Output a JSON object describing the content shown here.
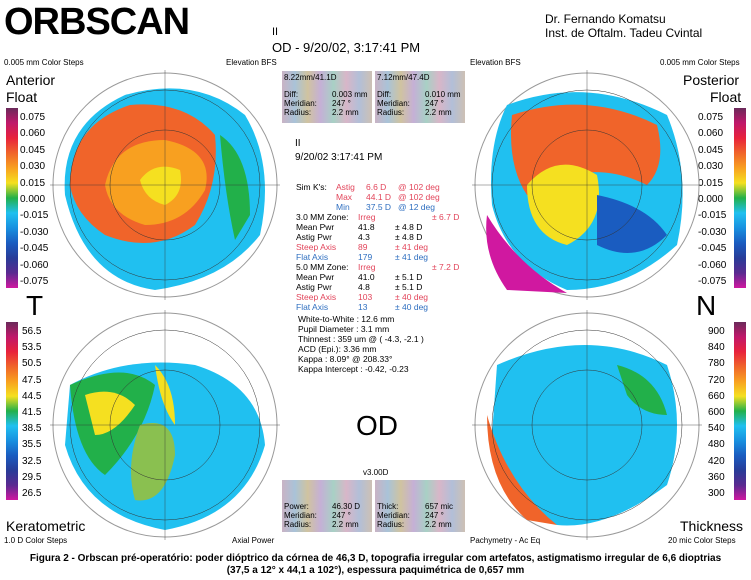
{
  "header": {
    "logo": "ORBSCAN",
    "eye_id": "II",
    "title": "OD - 9/20/02, 3:17:41 PM",
    "doctor": "Dr. Fernando Komatsu",
    "institute": "Inst. de Oftalm. Tadeu Cvintal"
  },
  "top_left": {
    "steps": "0.005 mm Color Steps",
    "mode": "Elevation BFS",
    "title1": "Anterior",
    "title2": "Float",
    "scale": [
      "0.075",
      "0.060",
      "0.045",
      "0.030",
      "0.015",
      "0.000",
      "-0.015",
      "-0.030",
      "-0.045",
      "-0.060",
      "-0.075"
    ]
  },
  "top_right": {
    "steps": "0.005 mm Color Steps",
    "mode": "Elevation BFS",
    "title1": "Posterior",
    "title2": "Float",
    "scale": [
      "0.075",
      "0.060",
      "0.045",
      "0.030",
      "0.015",
      "0.000",
      "-0.015",
      "-0.030",
      "-0.045",
      "-0.060",
      "-0.075"
    ]
  },
  "bottom_left": {
    "title": "Keratometric",
    "steps": "1.0 D Color Steps",
    "mode": "Axial Power",
    "scale": [
      "56.5",
      "53.5",
      "50.5",
      "47.5",
      "44.5",
      "41.5",
      "38.5",
      "35.5",
      "32.5",
      "29.5",
      "26.5"
    ]
  },
  "bottom_right": {
    "title": "Thickness",
    "steps": "20 mic Color Steps",
    "mode": "Pachymetry - Ac Eq",
    "scale": [
      "900",
      "840",
      "780",
      "720",
      "660",
      "600",
      "540",
      "480",
      "420",
      "360",
      "300"
    ]
  },
  "side_labels": {
    "temporal": "T",
    "nasal": "N",
    "eye": "OD"
  },
  "info_boxes": {
    "top_left": {
      "head": "8.22mm/41.1D",
      "rows": [
        [
          "Diff:",
          "0.003 mm"
        ],
        [
          "Meridian:",
          "247 °"
        ],
        [
          "Radius:",
          "2.2 mm"
        ]
      ]
    },
    "top_right": {
      "head": "7.12mm/47.4D",
      "rows": [
        [
          "Diff:",
          "0.010 mm"
        ],
        [
          "Meridian:",
          "247 °"
        ],
        [
          "Radius:",
          "2.2 mm"
        ]
      ]
    },
    "bottom_version": "v3.00D",
    "bottom_left": {
      "rows": [
        [
          "Power:",
          "46.30 D"
        ],
        [
          "Meridian:",
          "247 °"
        ],
        [
          "Radius:",
          "2.2 mm"
        ]
      ]
    },
    "bottom_right": {
      "rows": [
        [
          "Thick:",
          "657 mic"
        ],
        [
          "Meridian:",
          "247 °"
        ],
        [
          "Radius:",
          "2.2 mm"
        ]
      ]
    }
  },
  "center": {
    "eye_id": "II",
    "date": "9/20/02 3:17:41 PM",
    "stats": [
      [
        [
          "Sim K's:",
          ""
        ],
        [
          "Astig",
          "red"
        ],
        [
          "6.6 D",
          "red"
        ],
        [
          "@ 102 deg",
          "red"
        ]
      ],
      [
        [
          "",
          ""
        ],
        [
          "Max",
          "red"
        ],
        [
          "44.1 D",
          "red"
        ],
        [
          "@ 102 deg",
          "red"
        ]
      ],
      [
        [
          "",
          ""
        ],
        [
          "Min",
          "blu"
        ],
        [
          "37.5 D",
          "blu"
        ],
        [
          "@ 12 deg",
          "blu"
        ]
      ],
      [
        [
          "3.0 MM Zone:",
          ""
        ],
        [
          "Irreg",
          "red"
        ],
        [
          "",
          ""
        ],
        [
          "± 6.7 D",
          "red"
        ]
      ],
      [
        [
          " Mean Pwr",
          ""
        ],
        [
          "41.8",
          ""
        ],
        [
          "± 4.8 D",
          ""
        ],
        [
          "",
          ""
        ]
      ],
      [
        [
          " Astig Pwr",
          ""
        ],
        [
          "4.3",
          ""
        ],
        [
          "± 4.8 D",
          ""
        ],
        [
          "",
          ""
        ]
      ],
      [
        [
          " Steep Axis",
          "red"
        ],
        [
          "89",
          "red"
        ],
        [
          "± 41 deg",
          "red"
        ],
        [
          "",
          ""
        ]
      ],
      [
        [
          " Flat Axis",
          "blu"
        ],
        [
          "179",
          "blu"
        ],
        [
          "± 41 deg",
          "blu"
        ],
        [
          "",
          ""
        ]
      ],
      [
        [
          "5.0 MM Zone:",
          ""
        ],
        [
          "Irreg",
          "red"
        ],
        [
          "",
          ""
        ],
        [
          "± 7.2 D",
          "red"
        ]
      ],
      [
        [
          " Mean Pwr",
          ""
        ],
        [
          "41.0",
          ""
        ],
        [
          "± 5.1 D",
          ""
        ],
        [
          "",
          ""
        ]
      ],
      [
        [
          " Astig Pwr",
          ""
        ],
        [
          "4.8",
          ""
        ],
        [
          "± 5.1 D",
          ""
        ],
        [
          "",
          ""
        ]
      ],
      [
        [
          " Steep Axis",
          "red"
        ],
        [
          "103",
          "red"
        ],
        [
          "± 40 deg",
          "red"
        ],
        [
          "",
          ""
        ]
      ],
      [
        [
          " Flat Axis",
          "blu"
        ],
        [
          "13",
          "blu"
        ],
        [
          "± 40 deg",
          "blu"
        ],
        [
          "",
          ""
        ]
      ]
    ],
    "extra": [
      "White-to-White : 12.6 mm",
      "Pupil Diameter : 3.1 mm",
      "Thinnest : 359 um @ ( -4.3, -2.1 )",
      "ACD (Epi.): 3.36 mm",
      "Kappa : 8.09° @ 208.33°",
      "Kappa Intercept : -0.42, -0.23"
    ]
  },
  "caption": {
    "line1": "Figura 2 - Orbscan pré-operatório: poder dióptrico da córnea de 46,3 D, topografia irregular com artefatos, astigmatismo irregular de 6,6 dioptrias",
    "line2": "(37,5 a 12° x 44,1 a 102°), espessura paquimétrica de 0,657 mm"
  },
  "scale_colors": [
    "#6a2a5a",
    "#c0186a",
    "#e8223c",
    "#f0642a",
    "#f8a020",
    "#f5e020",
    "#22b04a",
    "#20c0f0",
    "#1890e0",
    "#1a5cc0",
    "#283c98",
    "#5a2a90",
    "#d018a0"
  ]
}
